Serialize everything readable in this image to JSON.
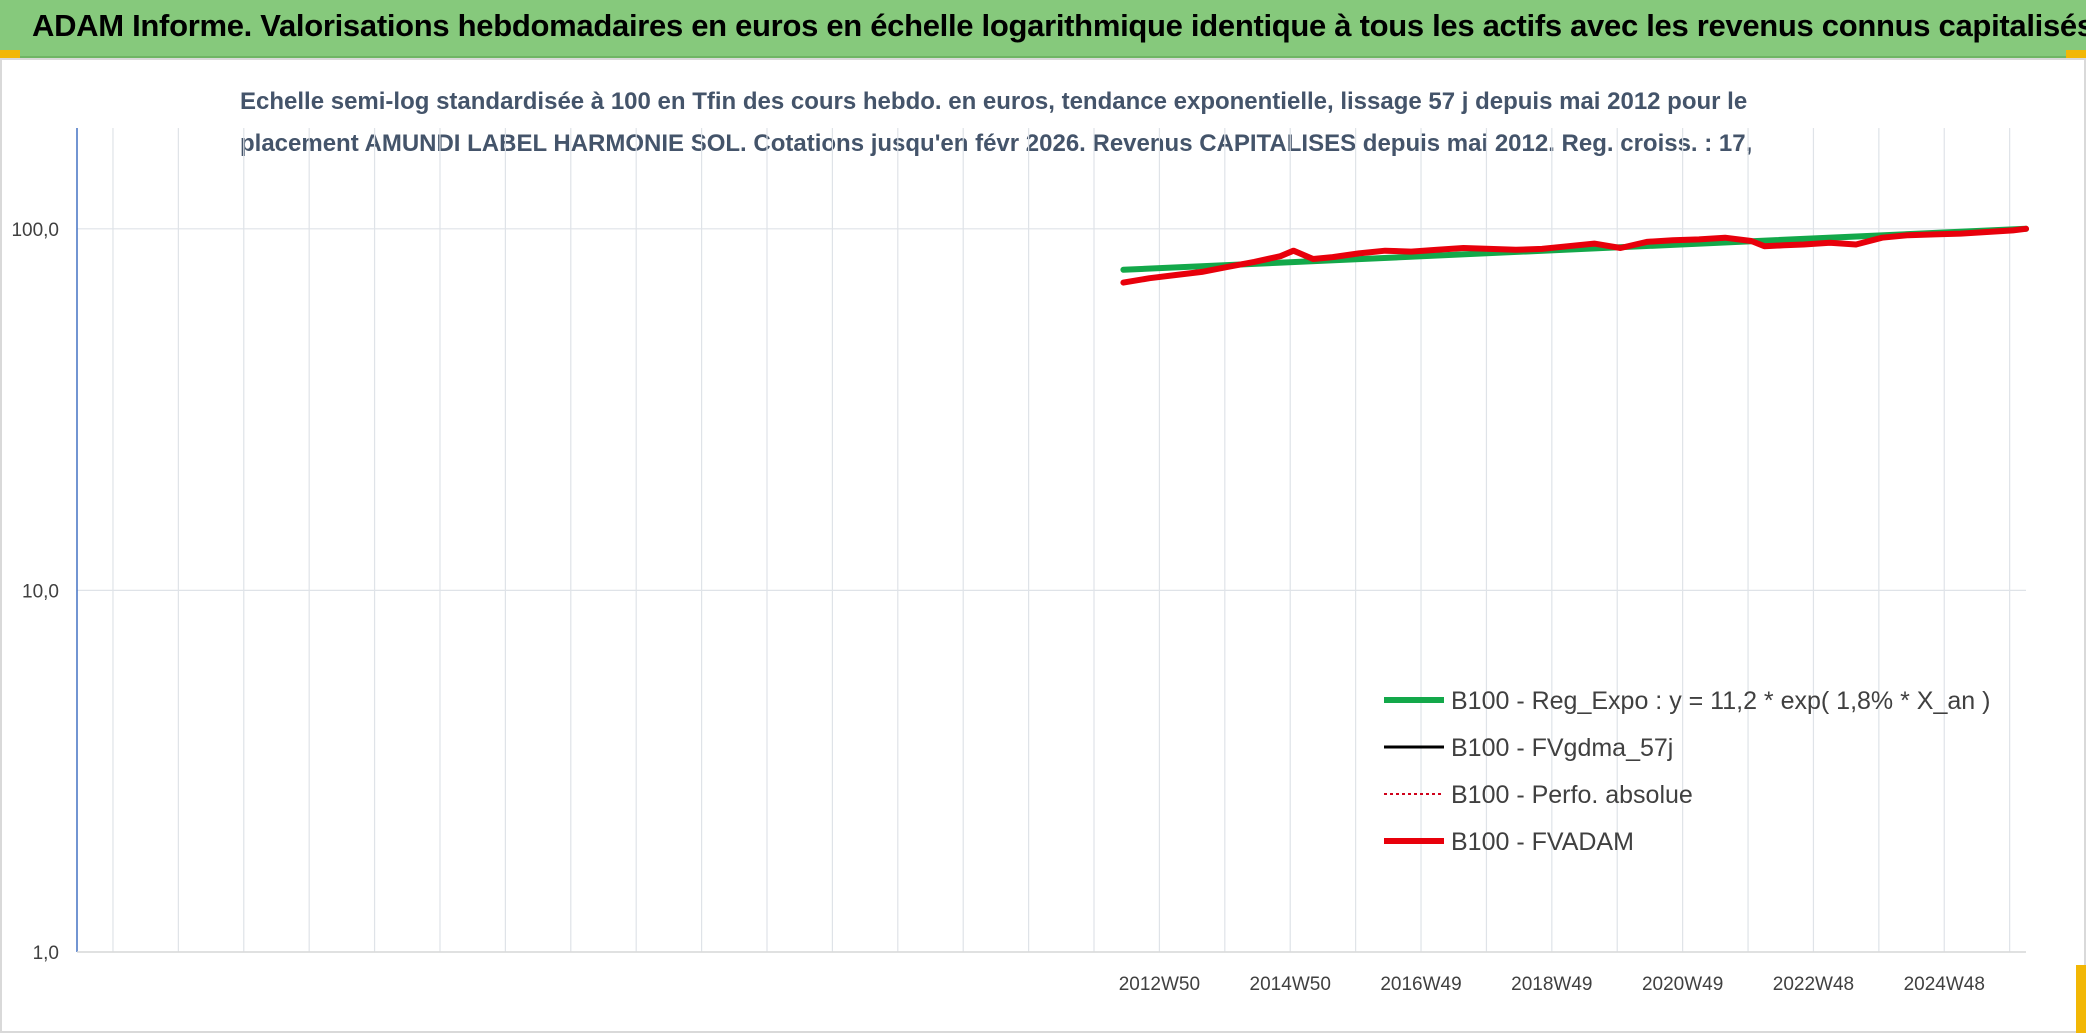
{
  "banner": {
    "title": "ADAM Informe. Valorisations hebdomadaires en euros en échelle logarithmique identique à tous les actifs avec les revenus connus capitalisés"
  },
  "colors": {
    "banner_bg": "#86c97c",
    "corner_accent": "#f2b705",
    "subtitle_text": "#44546a",
    "reg_expo": "#13a84a",
    "fvgdma": "#000000",
    "perfo": "#d0021b",
    "fvadam": "#e8000b"
  },
  "chart_data": {
    "type": "line",
    "title_lines": [
      "Echelle semi-log standardisée à 100 en Tfin des cours hebdo. en euros, tendance exponentielle, lissage 57 j depuis mai 2012 pour le",
      "placement AMUNDI LABEL HARMONIE SOL. Cotations jusqu'en févr 2026. Revenus CAPITALISES depuis mai 2012. Reg. croiss. : 17,"
    ],
    "y_scale": "log",
    "ylim": [
      1,
      190
    ],
    "y_ticks": [
      {
        "value": 1,
        "label": "1,0"
      },
      {
        "value": 10,
        "label": "10,0"
      },
      {
        "value": 100,
        "label": "100,0"
      }
    ],
    "xlim": [
      1996.4,
      2026.2
    ],
    "x_ticks": [
      {
        "value": 2012.95,
        "label": "2012W50"
      },
      {
        "value": 2014.95,
        "label": "2014W50"
      },
      {
        "value": 2016.95,
        "label": "2016W49"
      },
      {
        "value": 2018.95,
        "label": "2018W49"
      },
      {
        "value": 2020.95,
        "label": "2020W49"
      },
      {
        "value": 2022.95,
        "label": "2022W48"
      },
      {
        "value": 2024.95,
        "label": "2024W48"
      }
    ],
    "grid": true,
    "legend_position": "bottom-right",
    "series": [
      {
        "name": "B100 - Reg_Expo : y = 11,2 * exp( 1,8% *  X_an )",
        "style": "thick",
        "color": "#13a84a",
        "x": [
          2012.4,
          2026.2
        ],
        "y": [
          77,
          100
        ]
      },
      {
        "name": "B100 - FVgdma_57j",
        "style": "thin",
        "color": "#000000",
        "x": [],
        "y": []
      },
      {
        "name": "B100 - Perfo. absolue",
        "style": "dotted",
        "color": "#d0021b",
        "x": [],
        "y": []
      },
      {
        "name": "B100 - FVADAM",
        "style": "thick",
        "color": "#e8000b",
        "x": [
          2012.4,
          2012.8,
          2013.2,
          2013.6,
          2014.0,
          2014.4,
          2014.8,
          2015.0,
          2015.3,
          2015.6,
          2016.0,
          2016.4,
          2016.8,
          2017.2,
          2017.6,
          2018.0,
          2018.4,
          2018.8,
          2019.2,
          2019.6,
          2020.0,
          2020.4,
          2020.8,
          2021.2,
          2021.6,
          2022.0,
          2022.2,
          2022.5,
          2022.8,
          2023.2,
          2023.6,
          2024.0,
          2024.4,
          2024.8,
          2025.2,
          2025.6,
          2026.0,
          2026.2
        ],
        "y": [
          71,
          73,
          74.5,
          76,
          78.5,
          81,
          84,
          87,
          82.5,
          83.5,
          85.5,
          87,
          86.5,
          87.5,
          88.5,
          88,
          87.5,
          88,
          89.5,
          91,
          88.5,
          92,
          93,
          93.5,
          94.5,
          92.5,
          89.5,
          90,
          90.5,
          91.5,
          90.5,
          94.5,
          96,
          96.5,
          97,
          98,
          99,
          100
        ]
      }
    ]
  }
}
